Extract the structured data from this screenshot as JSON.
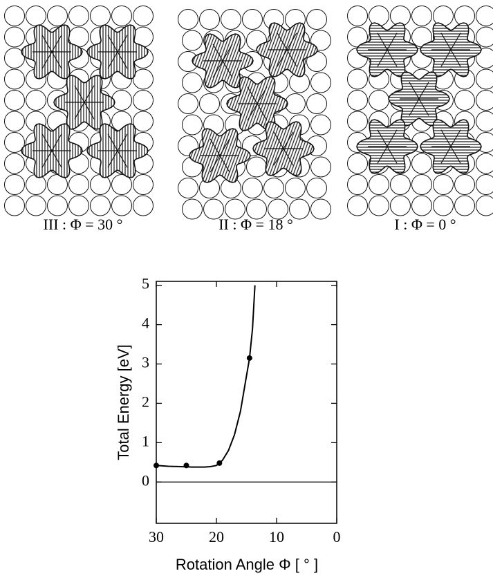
{
  "panels": [
    {
      "label": "III :  Φ = 30 °"
    },
    {
      "label": "II :  Φ = 18 °"
    },
    {
      "label": "I :  Φ = 0 °"
    }
  ],
  "chart_data": {
    "type": "line",
    "xlabel": "Rotation Angle Φ  [ ° ]",
    "ylabel": "Total Energy  [eV]",
    "xlim": [
      30,
      0
    ],
    "xticks": [
      30,
      20,
      10,
      0
    ],
    "ylim": [
      -1.05,
      5.1
    ],
    "yticks": [
      0,
      1,
      2,
      3,
      4,
      5
    ],
    "reference_line": 0,
    "color": "#000000",
    "series": [
      {
        "style": "line",
        "x": [
          30,
          28,
          26,
          24,
          22,
          21,
          20,
          19,
          18,
          17,
          16,
          15,
          14.5,
          14,
          13.6
        ],
        "values": [
          0.42,
          0.4,
          0.39,
          0.38,
          0.38,
          0.39,
          0.42,
          0.55,
          0.8,
          1.2,
          1.8,
          2.7,
          3.15,
          3.9,
          5.0
        ]
      },
      {
        "style": "points",
        "x": [
          30,
          25,
          19.5,
          14.5
        ],
        "values": [
          0.42,
          0.42,
          0.48,
          3.15
        ]
      }
    ]
  }
}
